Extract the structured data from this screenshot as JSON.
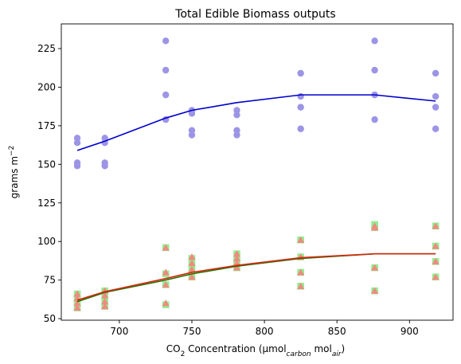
{
  "chart_data": {
    "type": "scatter",
    "title": "Total Edible Biomass outputs",
    "xlabel": {
      "prefix": "CO",
      "sub1": "2",
      "mid": " Concentration (μmol",
      "sub2": "carbon",
      "mid2": " mol",
      "sub3": "air",
      "suffix": ")"
    },
    "ylabel": {
      "prefix": "grams m",
      "sup": "−2"
    },
    "xlim": [
      660,
      930
    ],
    "ylim": [
      49,
      241
    ],
    "xticks": [
      700,
      750,
      800,
      850,
      900
    ],
    "yticks": [
      50,
      75,
      100,
      125,
      150,
      175,
      200,
      225
    ],
    "grid": false,
    "series": [
      {
        "marker": "circle",
        "color": "#9c95e6",
        "points": [
          [
            671,
            151
          ],
          [
            671,
            149
          ],
          [
            671,
            164
          ],
          [
            671,
            167
          ],
          [
            690,
            151
          ],
          [
            690,
            149
          ],
          [
            690,
            164
          ],
          [
            690,
            167
          ],
          [
            732,
            230
          ],
          [
            732,
            211
          ],
          [
            732,
            195
          ],
          [
            732,
            179
          ],
          [
            750,
            185
          ],
          [
            750,
            183
          ],
          [
            750,
            172
          ],
          [
            750,
            169
          ],
          [
            781,
            185
          ],
          [
            781,
            182
          ],
          [
            781,
            172
          ],
          [
            781,
            169
          ],
          [
            825,
            209
          ],
          [
            825,
            194
          ],
          [
            825,
            187
          ],
          [
            825,
            173
          ],
          [
            876,
            230
          ],
          [
            876,
            211
          ],
          [
            876,
            195
          ],
          [
            876,
            179
          ],
          [
            918,
            209
          ],
          [
            918,
            194
          ],
          [
            918,
            187
          ],
          [
            918,
            173
          ]
        ]
      },
      {
        "marker": "square",
        "color": "#90ee90",
        "points": [
          [
            671,
            66
          ],
          [
            671,
            63
          ],
          [
            671,
            60
          ],
          [
            671,
            57
          ],
          [
            690,
            68
          ],
          [
            690,
            65
          ],
          [
            690,
            61
          ],
          [
            690,
            58
          ],
          [
            732,
            96
          ],
          [
            732,
            79
          ],
          [
            732,
            72
          ],
          [
            732,
            59
          ],
          [
            750,
            89
          ],
          [
            750,
            85
          ],
          [
            750,
            82
          ],
          [
            750,
            77
          ],
          [
            781,
            92
          ],
          [
            781,
            88
          ],
          [
            781,
            86
          ],
          [
            781,
            83
          ],
          [
            825,
            101
          ],
          [
            825,
            90
          ],
          [
            825,
            80
          ],
          [
            825,
            71
          ],
          [
            876,
            111
          ],
          [
            876,
            109
          ],
          [
            876,
            83
          ],
          [
            876,
            68
          ],
          [
            918,
            110
          ],
          [
            918,
            97
          ],
          [
            918,
            87
          ],
          [
            918,
            77
          ]
        ]
      },
      {
        "marker": "triangle",
        "color": "#f08a80",
        "points": [
          [
            671,
            66
          ],
          [
            671,
            63
          ],
          [
            671,
            60
          ],
          [
            671,
            57
          ],
          [
            690,
            68
          ],
          [
            690,
            65
          ],
          [
            690,
            61
          ],
          [
            690,
            58
          ],
          [
            732,
            96
          ],
          [
            732,
            80
          ],
          [
            732,
            72
          ],
          [
            732,
            60
          ],
          [
            750,
            90
          ],
          [
            750,
            86
          ],
          [
            750,
            82
          ],
          [
            750,
            77
          ],
          [
            781,
            92
          ],
          [
            781,
            89
          ],
          [
            781,
            86
          ],
          [
            781,
            83
          ],
          [
            825,
            101
          ],
          [
            825,
            90
          ],
          [
            825,
            80
          ],
          [
            825,
            71
          ],
          [
            876,
            110
          ],
          [
            876,
            109
          ],
          [
            876,
            83
          ],
          [
            876,
            68
          ],
          [
            918,
            110
          ],
          [
            918,
            97
          ],
          [
            918,
            87
          ],
          [
            918,
            77
          ]
        ]
      }
    ],
    "lines": [
      {
        "color": "#0000cc",
        "x": [
          671,
          690,
          732,
          750,
          781,
          825,
          876,
          918
        ],
        "y": [
          159,
          165,
          180,
          185,
          190,
          195,
          195,
          191
        ]
      },
      {
        "color": "#2a6e00",
        "x": [
          671,
          690,
          732,
          750,
          781,
          825,
          876,
          918
        ],
        "y": [
          61,
          67,
          75,
          79,
          84,
          89,
          92,
          92
        ]
      },
      {
        "color": "#d22a10",
        "x": [
          671,
          690,
          732,
          750,
          781,
          825,
          876,
          918
        ],
        "y": [
          62,
          67.5,
          76,
          80,
          84.5,
          89.5,
          92,
          92
        ]
      }
    ]
  }
}
